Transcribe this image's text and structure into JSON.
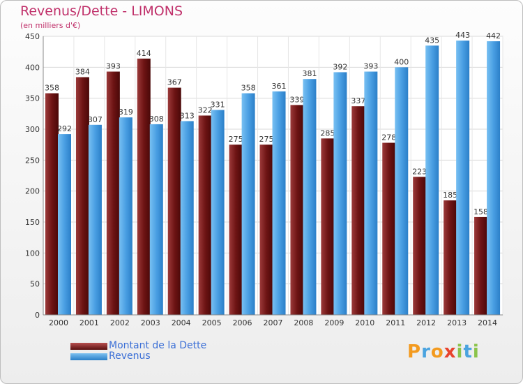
{
  "chart_data": {
    "type": "bar",
    "title": "Revenus/Dette - LIMONS",
    "subtitle": "(en milliers d'€)",
    "categories": [
      "2000",
      "2001",
      "2002",
      "2003",
      "2004",
      "2005",
      "2006",
      "2007",
      "2008",
      "2009",
      "2010",
      "2011",
      "2012",
      "2013",
      "2014"
    ],
    "series": [
      {
        "name": "Montant de la Dette",
        "color": "#7a1e1e",
        "values": [
          358,
          384,
          393,
          414,
          367,
          322,
          275,
          275,
          339,
          285,
          337,
          278,
          223,
          185,
          158
        ]
      },
      {
        "name": "Revenus",
        "color": "#4b9fe3",
        "values": [
          292,
          307,
          319,
          308,
          313,
          331,
          358,
          361,
          381,
          392,
          393,
          400,
          435,
          443,
          442
        ]
      }
    ],
    "ylim": [
      0,
      450
    ],
    "yticks": [
      0,
      50,
      100,
      150,
      200,
      250,
      300,
      350,
      400,
      450
    ],
    "grid": true,
    "legend_position": "bottom-left"
  },
  "logo": {
    "text": "Proxiti",
    "letters": [
      {
        "ch": "P",
        "color": "#f39a1e"
      },
      {
        "ch": "r",
        "color": "#4aa3df"
      },
      {
        "ch": "o",
        "color": "#f39a1e"
      },
      {
        "ch": "x",
        "color": "#e8432d"
      },
      {
        "ch": "i",
        "color": "#8bc34a"
      },
      {
        "ch": "t",
        "color": "#4aa3df"
      },
      {
        "ch": "i",
        "color": "#8bc34a"
      }
    ]
  }
}
